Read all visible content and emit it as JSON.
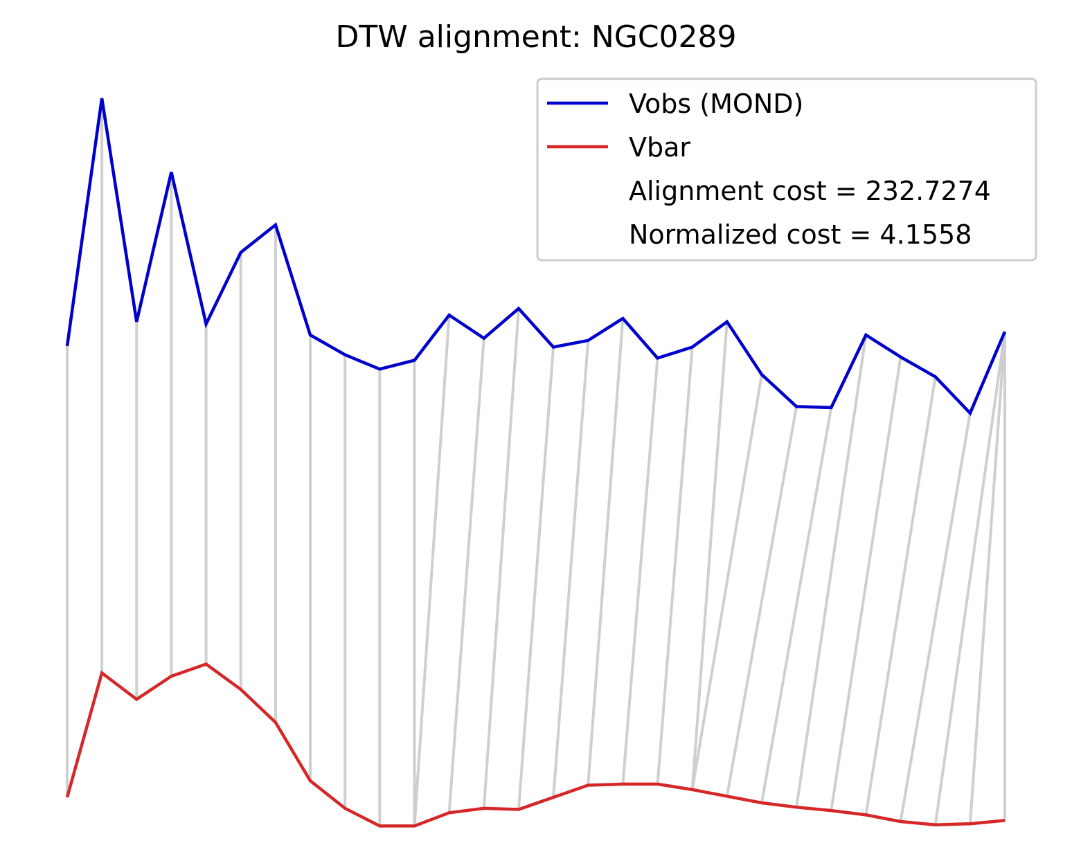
{
  "chart_data": {
    "type": "line",
    "title": "DTW alignment: NGC0289",
    "xlabel": "",
    "ylabel": "",
    "axes_visible": false,
    "grid": false,
    "legend_position": "upper right",
    "series": [
      {
        "name": "Vobs (MOND)",
        "color": "#0000cc",
        "values": [
          5.0,
          27.5,
          7.2,
          20.8,
          7.0,
          13.5,
          16.0,
          6.0,
          4.2,
          2.9,
          3.7,
          7.8,
          5.7,
          8.4,
          4.9,
          5.5,
          7.5,
          3.9,
          4.9,
          7.2,
          2.4,
          -0.5,
          -0.6,
          6.0,
          4.0,
          2.2,
          -1.1,
          6.3
        ]
      },
      {
        "name": "Vbar",
        "color": "#d62728",
        "values": [
          -36.0,
          -24.7,
          -27.1,
          -25.0,
          -23.9,
          -26.2,
          -29.2,
          -34.5,
          -37.0,
          -38.6,
          -38.6,
          -37.4,
          -37.0,
          -37.1,
          -36.0,
          -34.9,
          -34.8,
          -34.8,
          -35.3,
          -35.9,
          -36.5,
          -36.9,
          -37.2,
          -37.6,
          -38.2,
          -38.5,
          -38.4,
          -38.1
        ]
      }
    ],
    "alignment_path": [
      [
        0,
        0
      ],
      [
        1,
        1
      ],
      [
        2,
        2
      ],
      [
        3,
        3
      ],
      [
        4,
        4
      ],
      [
        5,
        5
      ],
      [
        6,
        6
      ],
      [
        7,
        7
      ],
      [
        8,
        8
      ],
      [
        9,
        9
      ],
      [
        10,
        10
      ],
      [
        11,
        10
      ],
      [
        12,
        11
      ],
      [
        13,
        12
      ],
      [
        14,
        13
      ],
      [
        15,
        14
      ],
      [
        16,
        15
      ],
      [
        17,
        16
      ],
      [
        18,
        17
      ],
      [
        19,
        18
      ],
      [
        20,
        18
      ],
      [
        21,
        19
      ],
      [
        22,
        20
      ],
      [
        23,
        21
      ],
      [
        24,
        22
      ],
      [
        25,
        23
      ],
      [
        26,
        24
      ],
      [
        27,
        25
      ],
      [
        27,
        26
      ],
      [
        27,
        27
      ]
    ],
    "alignment_color": "#cccccc",
    "annotations": [
      "Alignment cost = 232.7274",
      "Normalized cost = 4.1558"
    ]
  }
}
